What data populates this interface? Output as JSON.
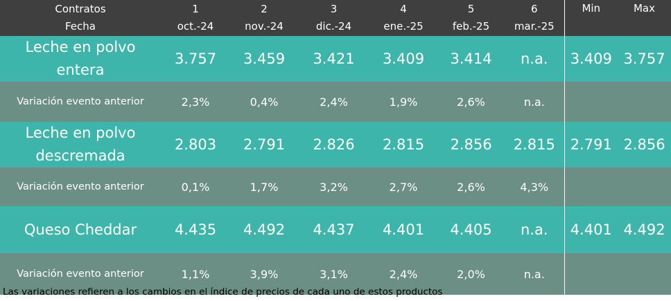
{
  "header": {
    "label_line1": "Contratos",
    "label_line2": "Fecha",
    "contracts": [
      {
        "num": "1",
        "date": "oct.-24"
      },
      {
        "num": "2",
        "date": "nov.-24"
      },
      {
        "num": "3",
        "date": "dic.-24"
      },
      {
        "num": "4",
        "date": "ene.-25"
      },
      {
        "num": "5",
        "date": "feb.-25"
      },
      {
        "num": "6",
        "date": "mar.-25"
      }
    ],
    "min_label": "Min",
    "max_label": "Max"
  },
  "products": [
    {
      "name_line1": "Leche en polvo",
      "name_line2": "entera",
      "prices": [
        "3.757",
        "3.459",
        "3.421",
        "3.409",
        "3.414",
        "n.a."
      ],
      "min": "3.409",
      "max": "3.757",
      "variation_label": "Variación evento anterior",
      "variations": [
        "2,3%",
        "0,4%",
        "2,4%",
        "1,9%",
        "2,6%",
        "n.a."
      ]
    },
    {
      "name_line1": "Leche en polvo",
      "name_line2": "descremada",
      "prices": [
        "2.803",
        "2.791",
        "2.826",
        "2.815",
        "2.856",
        "2.815"
      ],
      "min": "2.791",
      "max": "2.856",
      "variation_label": "Variación evento anterior",
      "variations": [
        "0,1%",
        "1,7%",
        "3,2%",
        "2,7%",
        "2,6%",
        "4,3%"
      ]
    },
    {
      "name_line1": "Queso Cheddar",
      "name_line2": "",
      "prices": [
        "4.435",
        "4.492",
        "4.437",
        "4.401",
        "4.405",
        "n.a."
      ],
      "min": "4.401",
      "max": "4.492",
      "variation_label": "Variación evento anterior",
      "variations": [
        "1,1%",
        "3,9%",
        "3,1%",
        "2,4%",
        "2,0%",
        "n.a."
      ]
    }
  ],
  "footnote": "Las variaciones refieren a los cambios en el índice de precios de cada uno de estos productos",
  "colors": {
    "header_bg": "#3f3f3f",
    "product_row_bg": "#3db5aa",
    "variation_row_bg": "#6c8f85",
    "text": "#ffffff"
  }
}
